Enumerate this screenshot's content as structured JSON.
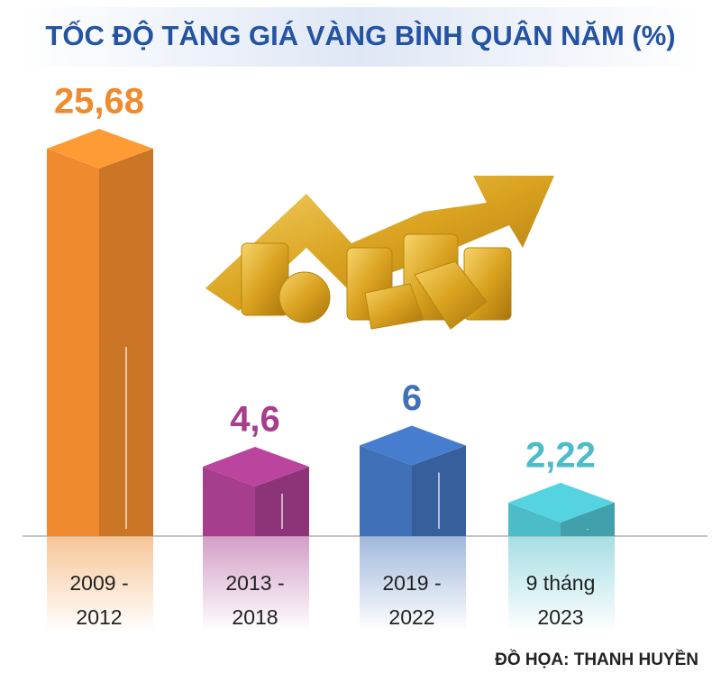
{
  "chart_data": {
    "type": "bar3d",
    "title": "TỐC ĐỘ TĂNG GIÁ VÀNG BÌNH QUÂN NĂM (%)",
    "categories": [
      "2009 - 2012",
      "2013 - 2018",
      "2019 - 2022",
      "9 tháng 2023"
    ],
    "values": [
      25.68,
      4.6,
      6,
      2.22
    ],
    "value_labels": [
      "25,68",
      "4,6",
      "6",
      "2,22"
    ],
    "colors": [
      "#ef8a2e",
      "#a63d8d",
      "#3f70b8",
      "#4cbcc9"
    ],
    "credit": "ĐỒ HỌA: THANH HUYỀN"
  }
}
